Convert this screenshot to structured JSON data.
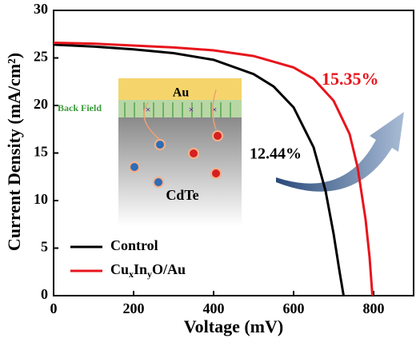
{
  "chart_data": {
    "type": "line",
    "x_label": "Voltage (mV)",
    "y_label": "Current Density (mA/cm²)",
    "xlim": [
      0,
      900
    ],
    "ylim": [
      0,
      30
    ],
    "xticks": [
      0,
      200,
      400,
      600,
      800
    ],
    "yticks": [
      0,
      5,
      10,
      15,
      20,
      25,
      30
    ],
    "legend_position": "lower left",
    "series": [
      {
        "name": "Control",
        "color": "#000000",
        "x": [
          0,
          100,
          200,
          300,
          400,
          500,
          550,
          600,
          650,
          680,
          700,
          715,
          725
        ],
        "values": [
          26.4,
          26.2,
          25.9,
          25.5,
          24.8,
          23.3,
          22.0,
          19.8,
          15.6,
          11.0,
          6.5,
          2.5,
          0
        ]
      },
      {
        "name": "CuxInyO/Au",
        "color": "#e8141c",
        "x": [
          0,
          100,
          200,
          300,
          400,
          500,
          600,
          650,
          700,
          740,
          760,
          780,
          790,
          797
        ],
        "values": [
          26.6,
          26.5,
          26.3,
          26.1,
          25.8,
          25.2,
          24.0,
          22.8,
          20.5,
          17.0,
          13.5,
          8.0,
          4.0,
          0
        ]
      }
    ],
    "annotations": [
      "12.44%",
      "15.35%"
    ]
  },
  "inset": {
    "top_layer": "Au",
    "field": "Back Field",
    "bottom_layer": "CdTe"
  }
}
